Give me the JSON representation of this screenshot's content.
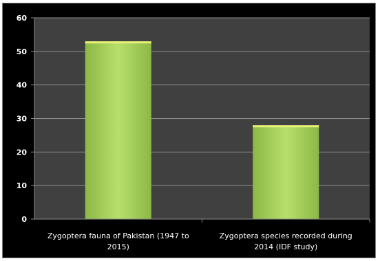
{
  "chart_data": {
    "type": "bar",
    "categories": [
      [
        "Zygoptera fauna of Pakistan (1947 to",
        "2015)"
      ],
      [
        "Zygoptera species recorded during",
        "2014 (IDF study)"
      ]
    ],
    "values": [
      53,
      28
    ],
    "ylim": [
      0,
      60
    ],
    "yticks": [
      "0",
      "10",
      "20",
      "30",
      "40",
      "50",
      "60"
    ],
    "grid": true,
    "legend": "none",
    "colors": {
      "plot_background": "#404040",
      "frame_background": "#000000",
      "bar_light": "#b8df6c",
      "bar_dark": "#8cb845",
      "bar_top": "#e8f078",
      "gridline": "#8c8c8c",
      "text": "#ffffff"
    }
  }
}
